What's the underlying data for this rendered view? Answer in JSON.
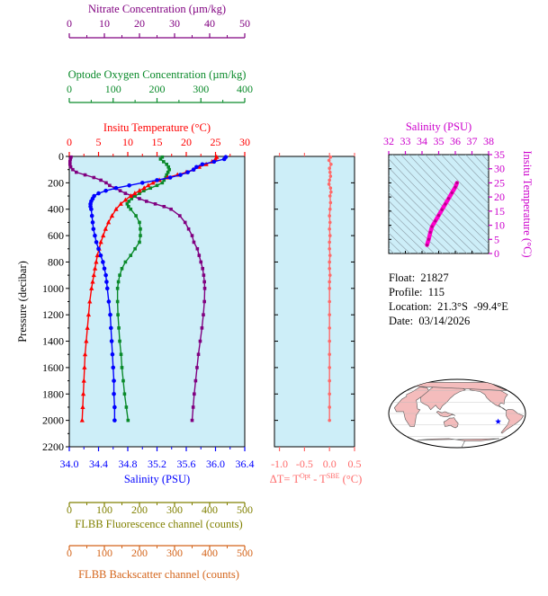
{
  "info": {
    "float_label": "Float:",
    "float_value": "21827",
    "profile_label": "Profile:",
    "profile_value": "115",
    "location_label": "Location:",
    "location_value": "21.3°S  -99.4°E",
    "date_label": "Date:",
    "date_value": "03/14/2026"
  },
  "colors": {
    "plot_bg": "#cdeef8",
    "temperature": "#ff0000",
    "salinity": "#0000ff",
    "oxygen": "#0a8a2a",
    "nitrate": "#800080",
    "flbb_fluor": "#808000",
    "flbb_back": "#d4641a",
    "delta_t": "#ff6a6a",
    "ts_curve": "#ff00cc",
    "land": "#f4bcbc",
    "ocean": "#ffffff",
    "star": "#0000ff"
  },
  "chart_data": [
    {
      "type": "line",
      "name": "profile",
      "ylabel": "Pressure (decibar)",
      "ylim": [
        2200,
        0
      ],
      "yticks": [
        "0",
        "200",
        "400",
        "600",
        "800",
        "1000",
        "1200",
        "1400",
        "1600",
        "1800",
        "2000",
        "2200"
      ],
      "axes": {
        "nitrate": {
          "label": "Nitrate Concentration (µm/kg)",
          "range": [
            0,
            50
          ],
          "ticks": [
            "0",
            "10",
            "20",
            "30",
            "40",
            "50"
          ]
        },
        "oxygen": {
          "label": "Optode Oxygen Concentration (µm/kg)",
          "range": [
            0,
            400
          ],
          "ticks": [
            "0",
            "100",
            "200",
            "300",
            "400"
          ]
        },
        "temperature": {
          "label": "Insitu Temperature (°C)",
          "range": [
            0,
            30
          ],
          "ticks": [
            "0",
            "5",
            "10",
            "15",
            "20",
            "25",
            "30"
          ]
        },
        "salinity": {
          "label": "Salinity (PSU)",
          "range": [
            34.0,
            36.4
          ],
          "ticks": [
            "34.0",
            "34.4",
            "34.8",
            "35.2",
            "35.6",
            "36.0",
            "36.4"
          ]
        },
        "fluorescence": {
          "label": "FLBB Fluorescence channel (counts)",
          "range": [
            0,
            500
          ],
          "ticks": [
            "0",
            "100",
            "200",
            "300",
            "400",
            "500"
          ]
        },
        "backscatter": {
          "label": "FLBB Backscatter channel (counts)",
          "range": [
            0,
            500
          ],
          "ticks": [
            "0",
            "100",
            "200",
            "300",
            "400",
            "500"
          ]
        }
      },
      "series": [
        {
          "key": "temperature",
          "marker": "triangle",
          "pressure": [
            5,
            20,
            40,
            60,
            80,
            100,
            120,
            140,
            160,
            180,
            200,
            220,
            240,
            260,
            280,
            300,
            330,
            360,
            400,
            450,
            500,
            550,
            600,
            650,
            700,
            750,
            800,
            850,
            900,
            950,
            1000,
            1100,
            1200,
            1300,
            1400,
            1500,
            1600,
            1700,
            1800,
            1900,
            2000
          ],
          "values": [
            25.2,
            25.0,
            24.4,
            23.4,
            22.2,
            21.2,
            20.0,
            18.5,
            16.8,
            15.4,
            14.3,
            13.5,
            12.8,
            12.0,
            11.2,
            10.5,
            9.6,
            8.8,
            8.0,
            7.3,
            6.7,
            6.2,
            5.8,
            5.4,
            5.1,
            4.8,
            4.6,
            4.4,
            4.2,
            4.0,
            3.8,
            3.5,
            3.3,
            3.1,
            2.9,
            2.7,
            2.6,
            2.5,
            2.4,
            2.3,
            2.2
          ]
        },
        {
          "key": "salinity",
          "marker": "circle",
          "pressure": [
            5,
            20,
            40,
            60,
            80,
            100,
            120,
            140,
            160,
            180,
            200,
            220,
            240,
            260,
            280,
            300,
            320,
            340,
            360,
            380,
            400,
            450,
            500,
            550,
            600,
            650,
            700,
            750,
            800,
            850,
            900,
            950,
            1000,
            1100,
            1200,
            1300,
            1400,
            1500,
            1600,
            1700,
            1800,
            1900,
            2000
          ],
          "values": [
            36.14,
            36.12,
            35.98,
            35.82,
            35.74,
            35.7,
            35.62,
            35.52,
            35.38,
            35.2,
            35.0,
            34.82,
            34.64,
            34.5,
            34.4,
            34.34,
            34.32,
            34.3,
            34.29,
            34.29,
            34.3,
            34.31,
            34.32,
            34.33,
            34.35,
            34.37,
            34.4,
            34.43,
            34.46,
            34.48,
            34.5,
            34.51,
            34.52,
            34.54,
            34.56,
            34.57,
            34.58,
            34.59,
            34.6,
            34.61,
            34.61,
            34.62,
            34.62
          ]
        },
        {
          "key": "oxygen",
          "marker": "square",
          "pressure": [
            5,
            20,
            40,
            60,
            80,
            100,
            120,
            140,
            160,
            180,
            200,
            220,
            240,
            260,
            280,
            300,
            320,
            340,
            360,
            380,
            400,
            450,
            500,
            550,
            600,
            650,
            700,
            750,
            800,
            850,
            900,
            950,
            1000,
            1100,
            1200,
            1300,
            1400,
            1500,
            1600,
            1700,
            1800,
            1900,
            2000
          ],
          "values": [
            212,
            208,
            215,
            222,
            226,
            228,
            225,
            222,
            220,
            216,
            212,
            200,
            185,
            170,
            160,
            150,
            142,
            136,
            132,
            135,
            140,
            152,
            160,
            162,
            162,
            160,
            150,
            140,
            128,
            120,
            115,
            112,
            110,
            110,
            111,
            113,
            115,
            118,
            120,
            123,
            126,
            130,
            134
          ]
        },
        {
          "key": "nitrate",
          "marker": "square",
          "pressure": [
            5,
            20,
            40,
            60,
            80,
            100,
            120,
            140,
            160,
            180,
            200,
            220,
            240,
            260,
            280,
            300,
            320,
            340,
            360,
            380,
            400,
            450,
            500,
            550,
            600,
            650,
            700,
            750,
            800,
            850,
            900,
            950,
            1000,
            1100,
            1200,
            1300,
            1400,
            1500,
            1600,
            1700,
            1800,
            1900,
            2000
          ],
          "values": [
            0.5,
            0.3,
            0.2,
            0.2,
            0.4,
            1.0,
            2.0,
            4.5,
            7.0,
            9.0,
            10.5,
            11.5,
            13.0,
            14.5,
            16.0,
            18.0,
            20.0,
            22.0,
            24.5,
            27.0,
            29.0,
            31.5,
            33.0,
            34.0,
            35.0,
            35.5,
            36.5,
            37.0,
            37.5,
            38.0,
            38.3,
            38.5,
            38.6,
            38.5,
            38.2,
            37.8,
            37.3,
            36.8,
            36.4,
            36.0,
            35.6,
            35.3,
            35.0
          ]
        }
      ]
    },
    {
      "type": "line",
      "name": "delta_t",
      "xlabel_main": "ΔT= T",
      "xlabel_sup1": "Opt",
      "xlabel_mid": " - T",
      "xlabel_sup2": "SBE",
      "xlabel_unit": " (°C)",
      "xlim": [
        -1.1,
        0.5
      ],
      "xticks": [
        "-1.0",
        "-0.5",
        "0.0",
        "0.5"
      ],
      "ylim": [
        2200,
        0
      ],
      "pressure": [
        5,
        30,
        60,
        90,
        120,
        150,
        180,
        210,
        240,
        270,
        300,
        350,
        400,
        450,
        500,
        550,
        600,
        650,
        700,
        750,
        800,
        850,
        900,
        950,
        1000,
        1100,
        1200,
        1300,
        1400,
        1500,
        1600,
        1700,
        1800,
        1900,
        2000
      ],
      "values": [
        0.02,
        -0.01,
        0.03,
        0.0,
        0.01,
        0.02,
        0.0,
        -0.01,
        0.02,
        0.03,
        0.01,
        0.02,
        0.01,
        0.0,
        0.01,
        0.0,
        0.01,
        0.0,
        0.0,
        0.01,
        0.0,
        0.0,
        0.01,
        0.0,
        0.0,
        0.0,
        0.0,
        0.0,
        0.0,
        0.0,
        0.0,
        0.0,
        0.0,
        0.0,
        0.0
      ]
    },
    {
      "type": "line",
      "name": "ts_diagram",
      "xlabel": "Salinity (PSU)",
      "ylabel": "Insitu Temperature (°C)",
      "xlim": [
        32,
        38
      ],
      "ylim": [
        0,
        35
      ],
      "xticks": [
        "32",
        "33",
        "34",
        "35",
        "36",
        "37",
        "38"
      ],
      "yticks": [
        "0",
        "5",
        "10",
        "15",
        "20",
        "25",
        "30",
        "35"
      ],
      "salinity": [
        34.3,
        34.4,
        34.5,
        34.6,
        34.8,
        35.0,
        35.2,
        35.4,
        35.6,
        35.8,
        36.0,
        36.1
      ],
      "temperature": [
        3.0,
        5.0,
        7.5,
        9.5,
        11.5,
        13.5,
        15.5,
        17.5,
        19.5,
        21.5,
        23.5,
        25.0
      ]
    }
  ]
}
